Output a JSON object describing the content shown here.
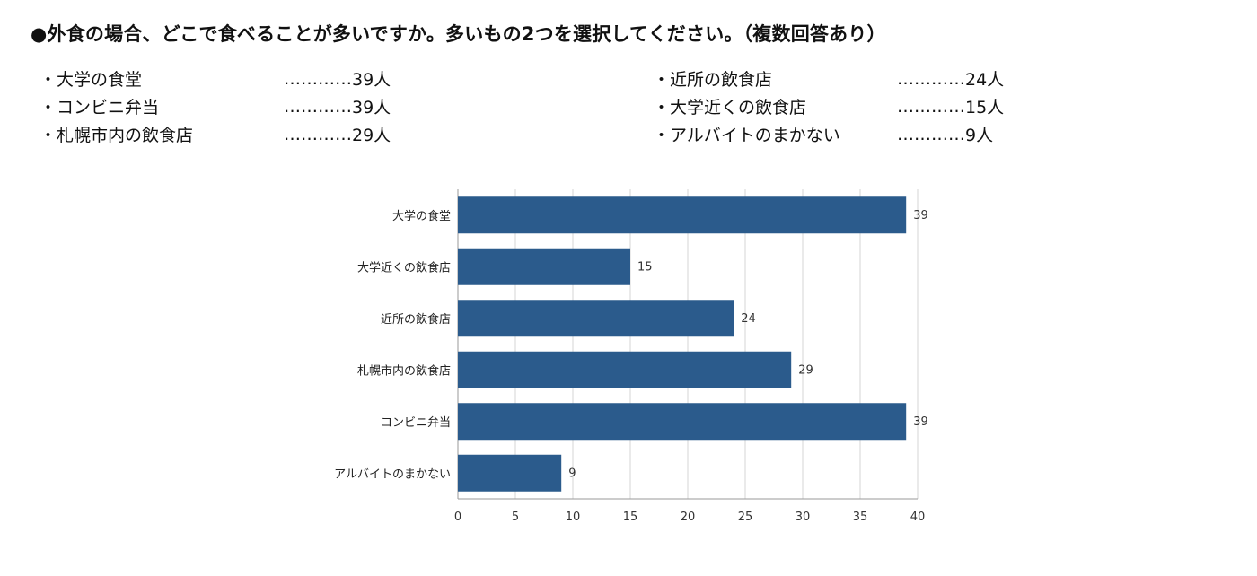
{
  "question": "●外食の場合、どこで食べることが多いですか。多いもの2つを選択してください。（複数回答あり）",
  "summary": {
    "left": [
      {
        "label": "・大学の食堂",
        "leader": "…………",
        "value": "39人"
      },
      {
        "label": "・コンビニ弁当",
        "leader": "…………",
        "value": "39人"
      },
      {
        "label": "・札幌市内の飲食店",
        "leader": "…………",
        "value": "29人"
      }
    ],
    "right": [
      {
        "label": "・近所の飲食店",
        "leader": "…………",
        "value": "24人"
      },
      {
        "label": "・大学近くの飲食店",
        "leader": "…………",
        "value": "15人"
      },
      {
        "label": "・アルバイトのまかない",
        "leader": "…………",
        "value": "9人"
      }
    ]
  },
  "chart_data": {
    "type": "bar",
    "orientation": "horizontal",
    "categories": [
      "大学の食堂",
      "大学近くの飲食店",
      "近所の飲食店",
      "札幌市内の飲食店",
      "コンビニ弁当",
      "アルバイトのまかない"
    ],
    "values": [
      39,
      15,
      24,
      29,
      39,
      9
    ],
    "data_labels": [
      "39",
      "15",
      "24",
      "29",
      "39",
      "9"
    ],
    "xlim": [
      0,
      40
    ],
    "xticks": [
      0,
      5,
      10,
      15,
      20,
      25,
      30,
      35,
      40
    ],
    "xtick_labels": [
      "0",
      "5",
      "10",
      "15",
      "20",
      "25",
      "30",
      "35",
      "40"
    ],
    "grid": true,
    "bar_color": "#2B5B8C",
    "grid_color": "#D4D4D4",
    "title": "",
    "xlabel": "",
    "ylabel": ""
  }
}
